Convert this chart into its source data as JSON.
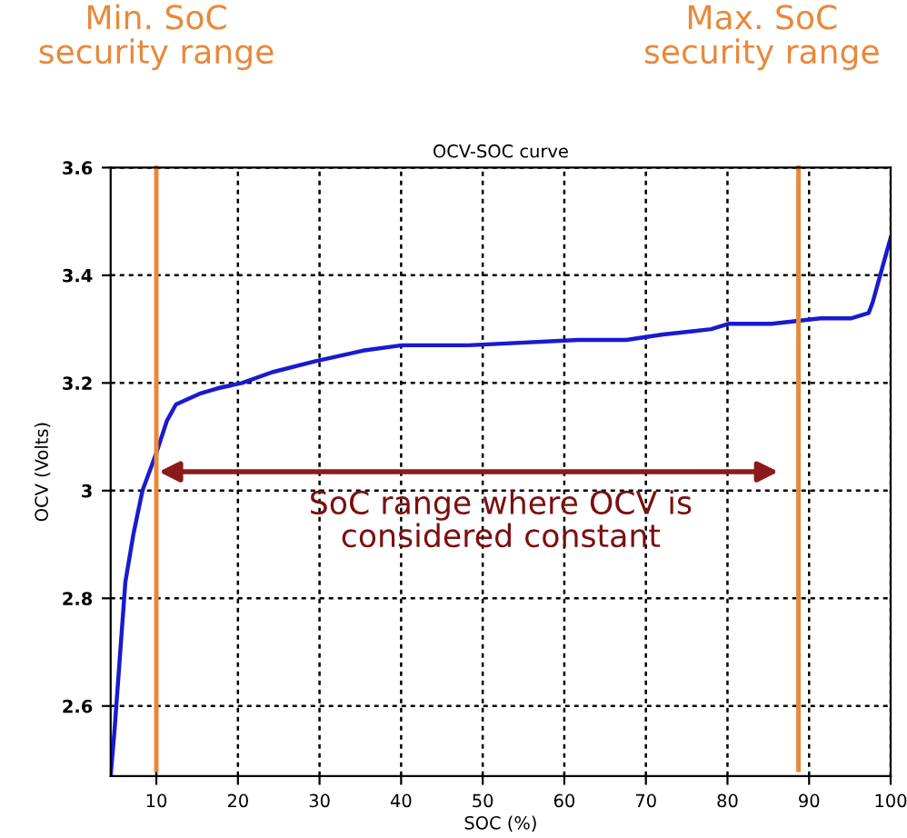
{
  "chart_data": {
    "type": "line",
    "title": "OCV-SOC curve",
    "xlabel": "SOC (%)",
    "ylabel": "OCV (Volts)",
    "x": [
      4.4,
      4.9,
      6.2,
      7.2,
      8.3,
      10,
      11.3,
      12.4,
      15.3,
      17.5,
      20.5,
      24.2,
      29.4,
      35.3,
      40.1,
      44.2,
      48.3,
      61.7,
      67.6,
      72.1,
      78.0,
      80.2,
      85.4,
      91.4,
      95.1,
      97.3,
      97.8,
      98.9,
      100
    ],
    "series": [
      {
        "color": "#1a1ad0",
        "values": [
          2.47,
          2.56,
          2.83,
          2.92,
          3.0,
          3.07,
          3.13,
          3.16,
          3.18,
          3.19,
          3.2,
          3.22,
          3.24,
          3.26,
          3.27,
          3.27,
          3.27,
          3.28,
          3.28,
          3.29,
          3.3,
          3.31,
          3.31,
          3.32,
          3.32,
          3.33,
          3.35,
          3.41,
          3.47
        ]
      }
    ],
    "xlim": [
      4.4,
      100
    ],
    "ylim": [
      2.47,
      3.6
    ],
    "xticks": [
      10,
      20,
      30,
      40,
      50,
      60,
      70,
      80,
      90,
      100
    ],
    "yticks": [
      2.6,
      2.8,
      3,
      3.2,
      3.4,
      3.6
    ],
    "grid": true,
    "line_style": "solid",
    "marker": "none",
    "ref_lines": [
      {
        "axis": "x",
        "value": 10,
        "label": "Min. SoC\nsecurity range",
        "color": "#e8893a"
      },
      {
        "axis": "x",
        "value": 88.7,
        "label": "Max. SoC\nsecurity range",
        "color": "#e8893a"
      }
    ],
    "annotations": [
      "SoC range where OCV is\nconsidered constant"
    ]
  }
}
